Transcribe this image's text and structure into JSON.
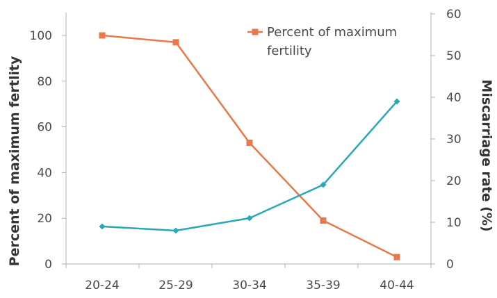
{
  "chart_data": {
    "type": "line",
    "categories": [
      "20-24",
      "25-29",
      "30-34",
      "35-39",
      "40-44"
    ],
    "y_left": {
      "label": "Percent of maximum fertlity",
      "ylim": [
        0,
        110
      ],
      "ticks": [
        0,
        20,
        40,
        60,
        80,
        100
      ]
    },
    "y_right": {
      "label": "Miscarriage rate (%)",
      "ylim": [
        0,
        60
      ],
      "ticks": [
        0,
        10,
        20,
        30,
        40,
        50,
        60
      ]
    },
    "series": [
      {
        "name": "Percent of maximum fertility",
        "axis": "left",
        "color": "#e8784a",
        "marker": "square",
        "values": [
          100,
          97,
          53,
          19,
          3
        ]
      },
      {
        "axis": "right",
        "color": "#2aa8b8",
        "marker": "diamond",
        "values": [
          9,
          8,
          11,
          19,
          39
        ]
      }
    ],
    "legend": {
      "position": "top-right",
      "lines": [
        "Percent of maximum",
        "fertility"
      ]
    },
    "grid": false
  }
}
